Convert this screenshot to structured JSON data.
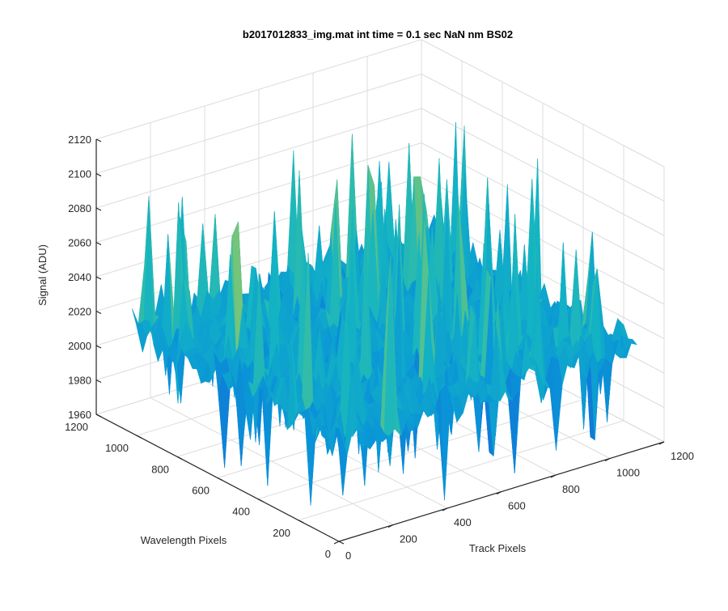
{
  "chart_data": {
    "type": "surface",
    "title": "b2017012833_img.mat int time = 0.1 sec  NaN nm BS02",
    "xlabel": "Track Pixels",
    "ylabel": "Wavelength Pixels",
    "zlabel": "Signal (ADU)",
    "xlim": [
      0,
      1200
    ],
    "ylim": [
      0,
      1200
    ],
    "zlim": [
      1960,
      2120
    ],
    "xticks": [
      0,
      200,
      400,
      600,
      800,
      1000,
      1200
    ],
    "yticks": [
      0,
      200,
      400,
      600,
      800,
      1000,
      1200
    ],
    "zticks": [
      1960,
      1980,
      2000,
      2020,
      2040,
      2060,
      2080,
      2100,
      2120
    ],
    "data_extent": {
      "x": [
        1,
        1100
      ],
      "y": [
        1,
        1024
      ]
    },
    "baseline_signal": 2020,
    "signal_range": [
      1965,
      2115
    ],
    "colormap": "parula",
    "grid": true,
    "view": "3d"
  }
}
